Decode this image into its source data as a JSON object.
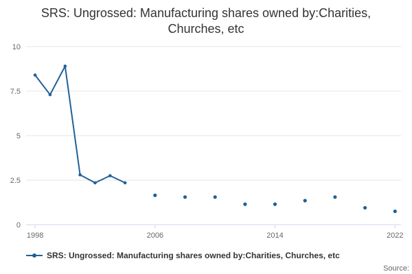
{
  "title": "SRS: Ungrossed: Manufacturing shares owned by:Charities, Churches, etc",
  "source_label": "Source:",
  "legend": {
    "label": "SRS: Ungrossed: Manufacturing shares owned by:Charities, Churches, etc"
  },
  "colors": {
    "series": "#206095",
    "gridline": "#e6e6e6",
    "axis_line": "#ccd6eb",
    "tick_label": "#666666",
    "title_text": "#333333"
  },
  "chart_data": {
    "type": "line",
    "title": "SRS: Ungrossed: Manufacturing shares owned by:Charities, Churches, etc",
    "xlabel": "",
    "ylabel": "",
    "legend_position": "bottom-left",
    "grid": "horizontal-only",
    "y_axis": {
      "min": 0,
      "max": 10,
      "ticks": [
        0,
        2.5,
        5,
        7.5,
        10
      ],
      "tick_labels": [
        "0",
        "2.5",
        "5",
        "7.5",
        "10"
      ]
    },
    "x_axis": {
      "min": 1997.4,
      "max": 2022.4,
      "ticks": [
        1998,
        2006,
        2014,
        2022
      ],
      "tick_labels": [
        "1998",
        "2006",
        "2014",
        "2022"
      ]
    },
    "series": [
      {
        "name": "SRS: Ungrossed: Manufacturing shares owned by:Charities, Churches, etc",
        "color": "#206095",
        "connected_points": [
          [
            1998,
            8.4
          ],
          [
            1999,
            7.3
          ],
          [
            2000,
            8.9
          ],
          [
            2001,
            2.8
          ],
          [
            2002,
            2.35
          ],
          [
            2003,
            2.75
          ],
          [
            2004,
            2.35
          ]
        ],
        "isolated_points": [
          [
            2006,
            1.65
          ],
          [
            2008,
            1.55
          ],
          [
            2010,
            1.55
          ],
          [
            2012,
            1.15
          ],
          [
            2014,
            1.15
          ],
          [
            2016,
            1.35
          ],
          [
            2018,
            1.55
          ],
          [
            2020,
            0.95
          ],
          [
            2022,
            0.75
          ]
        ]
      }
    ]
  }
}
